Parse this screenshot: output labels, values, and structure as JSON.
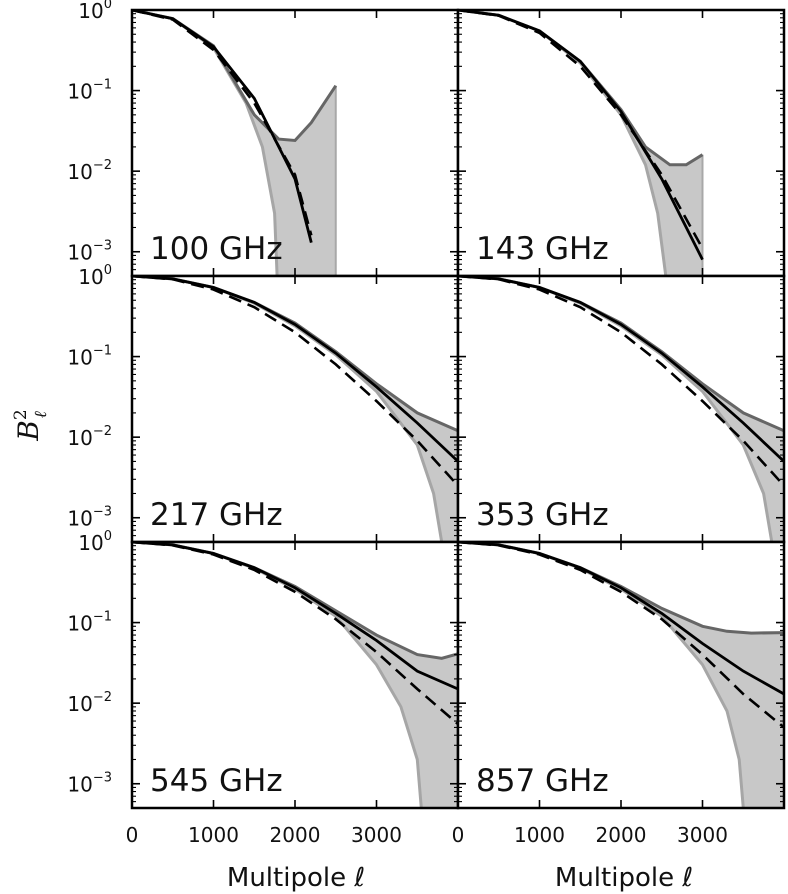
{
  "chart_data": {
    "type": "line",
    "ylabel": {
      "base": "B",
      "sup": "2",
      "sub": "ℓ"
    },
    "xlabel": "Multipole ℓ",
    "yscale": "log",
    "ylim": [
      0.0005,
      1
    ],
    "xlim": [
      0,
      4000
    ],
    "yticks": [
      {
        "base": "10",
        "exp": "0",
        "value": 1
      },
      {
        "base": "10",
        "exp": "−1",
        "value": 0.1
      },
      {
        "base": "10",
        "exp": "−2",
        "value": 0.01
      },
      {
        "base": "10",
        "exp": "−3",
        "value": 0.001
      }
    ],
    "xticks": [
      {
        "label": "0",
        "value": 0
      },
      {
        "label": "1000",
        "value": 1000
      },
      {
        "label": "2000",
        "value": 2000
      },
      {
        "label": "3000",
        "value": 3000
      }
    ],
    "grid": false,
    "panels": [
      {
        "label": "100 GHz",
        "nominal": {
          "x": [
            0,
            500,
            1000,
            1500,
            2000,
            2200
          ],
          "y": [
            1,
            0.78,
            0.35,
            0.08,
            0.008,
            0.0013
          ]
        },
        "dashed": {
          "x": [
            0,
            500,
            1000,
            1500,
            2000,
            2200
          ],
          "y": [
            1,
            0.76,
            0.32,
            0.07,
            0.009,
            0.0016
          ]
        },
        "upper": {
          "x": [
            0,
            500,
            1000,
            1500,
            1800,
            2000,
            2200,
            2500
          ],
          "y": [
            1,
            0.78,
            0.36,
            0.05,
            0.025,
            0.024,
            0.04,
            0.115
          ]
        },
        "lower": {
          "x": [
            0,
            500,
            1000,
            1400,
            1600,
            1750,
            1780
          ],
          "y": [
            1,
            0.78,
            0.34,
            0.07,
            0.02,
            0.003,
            0.0005
          ]
        },
        "band_end": 2500
      },
      {
        "label": "143 GHz",
        "nominal": {
          "x": [
            0,
            500,
            1000,
            1500,
            2000,
            2500,
            3000
          ],
          "y": [
            1,
            0.86,
            0.55,
            0.23,
            0.055,
            0.008,
            0.0008
          ]
        },
        "dashed": {
          "x": [
            0,
            500,
            1000,
            1500,
            2000,
            2500,
            3000
          ],
          "y": [
            1,
            0.85,
            0.52,
            0.2,
            0.05,
            0.009,
            0.0011
          ]
        },
        "upper": {
          "x": [
            0,
            500,
            1000,
            1500,
            2000,
            2300,
            2600,
            2800,
            3000
          ],
          "y": [
            1,
            0.86,
            0.55,
            0.23,
            0.058,
            0.02,
            0.012,
            0.012,
            0.016
          ]
        },
        "lower": {
          "x": [
            0,
            500,
            1000,
            1500,
            2000,
            2300,
            2450,
            2550
          ],
          "y": [
            1,
            0.86,
            0.55,
            0.22,
            0.05,
            0.012,
            0.003,
            0.0005
          ]
        },
        "band_end": 3000
      },
      {
        "label": "217 GHz",
        "nominal": {
          "x": [
            0,
            500,
            1000,
            1500,
            2000,
            2500,
            3000,
            3500,
            4000
          ],
          "y": [
            1,
            0.92,
            0.72,
            0.47,
            0.25,
            0.11,
            0.042,
            0.015,
            0.005
          ]
        },
        "dashed": {
          "x": [
            0,
            500,
            1000,
            1500,
            2000,
            2500,
            3000,
            3500,
            4000
          ],
          "y": [
            1,
            0.91,
            0.68,
            0.41,
            0.2,
            0.08,
            0.028,
            0.009,
            0.0025
          ]
        },
        "upper": {
          "x": [
            0,
            500,
            1000,
            1500,
            2000,
            2500,
            3000,
            3500,
            4000
          ],
          "y": [
            1,
            0.92,
            0.72,
            0.47,
            0.26,
            0.115,
            0.046,
            0.02,
            0.012
          ]
        },
        "lower": {
          "x": [
            0,
            500,
            1000,
            1500,
            2000,
            2500,
            3000,
            3500,
            3700,
            3800
          ],
          "y": [
            1,
            0.92,
            0.72,
            0.46,
            0.24,
            0.105,
            0.037,
            0.008,
            0.002,
            0.0005
          ]
        },
        "band_end": 4000
      },
      {
        "label": "353 GHz",
        "nominal": {
          "x": [
            0,
            500,
            1000,
            1500,
            2000,
            2500,
            3000,
            3500,
            4000
          ],
          "y": [
            1,
            0.92,
            0.72,
            0.47,
            0.25,
            0.11,
            0.042,
            0.015,
            0.005
          ]
        },
        "dashed": {
          "x": [
            0,
            500,
            1000,
            1500,
            2000,
            2500,
            3000,
            3500,
            4000
          ],
          "y": [
            1,
            0.91,
            0.68,
            0.41,
            0.2,
            0.08,
            0.028,
            0.009,
            0.0025
          ]
        },
        "upper": {
          "x": [
            0,
            500,
            1000,
            1500,
            2000,
            2500,
            3000,
            3500,
            4000
          ],
          "y": [
            1,
            0.92,
            0.72,
            0.47,
            0.26,
            0.115,
            0.046,
            0.02,
            0.012
          ]
        },
        "lower": {
          "x": [
            0,
            500,
            1000,
            1500,
            2000,
            2500,
            3000,
            3500,
            3750,
            3850
          ],
          "y": [
            1,
            0.92,
            0.72,
            0.46,
            0.24,
            0.105,
            0.037,
            0.008,
            0.002,
            0.0005
          ]
        },
        "band_end": 4000
      },
      {
        "label": "545 GHz",
        "nominal": {
          "x": [
            0,
            500,
            1000,
            1500,
            2000,
            2500,
            3000,
            3500,
            4000
          ],
          "y": [
            1,
            0.92,
            0.72,
            0.48,
            0.27,
            0.13,
            0.06,
            0.025,
            0.015
          ]
        },
        "dashed": {
          "x": [
            0,
            500,
            1000,
            1500,
            2000,
            2500,
            3000,
            3500,
            4000
          ],
          "y": [
            1,
            0.91,
            0.7,
            0.45,
            0.24,
            0.11,
            0.043,
            0.015,
            0.0055
          ]
        },
        "upper": {
          "x": [
            0,
            500,
            1000,
            1500,
            2000,
            2500,
            3000,
            3500,
            3800,
            4000
          ],
          "y": [
            1,
            0.92,
            0.72,
            0.48,
            0.28,
            0.14,
            0.07,
            0.04,
            0.036,
            0.041
          ]
        },
        "lower": {
          "x": [
            0,
            500,
            1000,
            1500,
            2000,
            2500,
            3000,
            3300,
            3500,
            3550
          ],
          "y": [
            1,
            0.92,
            0.72,
            0.47,
            0.26,
            0.12,
            0.03,
            0.009,
            0.002,
            0.0005
          ]
        },
        "band_end": 4000
      },
      {
        "label": "857 GHz",
        "nominal": {
          "x": [
            0,
            500,
            1000,
            1500,
            2000,
            2500,
            3000,
            3500,
            4000
          ],
          "y": [
            1,
            0.92,
            0.72,
            0.48,
            0.27,
            0.13,
            0.055,
            0.025,
            0.013
          ]
        },
        "dashed": {
          "x": [
            0,
            500,
            1000,
            1500,
            2000,
            2500,
            3000,
            3500,
            4000
          ],
          "y": [
            1,
            0.91,
            0.7,
            0.45,
            0.24,
            0.11,
            0.04,
            0.013,
            0.005
          ]
        },
        "upper": {
          "x": [
            0,
            500,
            1000,
            1500,
            2000,
            2500,
            3000,
            3300,
            3600,
            4000
          ],
          "y": [
            1,
            0.92,
            0.72,
            0.48,
            0.28,
            0.15,
            0.09,
            0.078,
            0.074,
            0.075
          ]
        },
        "lower": {
          "x": [
            0,
            500,
            1000,
            1500,
            2000,
            2500,
            3000,
            3300,
            3450,
            3500
          ],
          "y": [
            1,
            0.92,
            0.72,
            0.47,
            0.26,
            0.12,
            0.03,
            0.008,
            0.002,
            0.0005
          ]
        },
        "band_end": 4000
      }
    ]
  }
}
